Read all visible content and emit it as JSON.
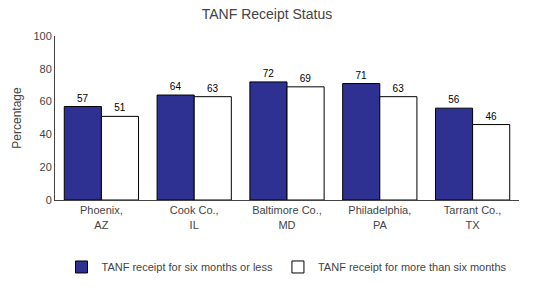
{
  "chart_data": {
    "type": "bar",
    "title": "TANF Receipt Status",
    "ylabel": "Percentage",
    "categories": [
      "Phoenix,\nAZ",
      "Cook Co.,\nIL",
      "Baltimore Co.,\nMD",
      "Philadelphia,\nPA",
      "Tarrant Co.,\nTX"
    ],
    "series": [
      {
        "name": "TANF receipt for six months or less",
        "color": "#2E3191",
        "values": [
          57,
          64,
          72,
          71,
          56
        ]
      },
      {
        "name": "TANF receipt for more than six months",
        "color": "#FFFFFF",
        "values": [
          51,
          63,
          69,
          63,
          46
        ]
      }
    ],
    "ylim": [
      0,
      100
    ],
    "yticks": [
      0,
      20,
      40,
      60,
      80,
      100
    ],
    "data_labels": true,
    "grid": false,
    "legend": "bottom"
  }
}
